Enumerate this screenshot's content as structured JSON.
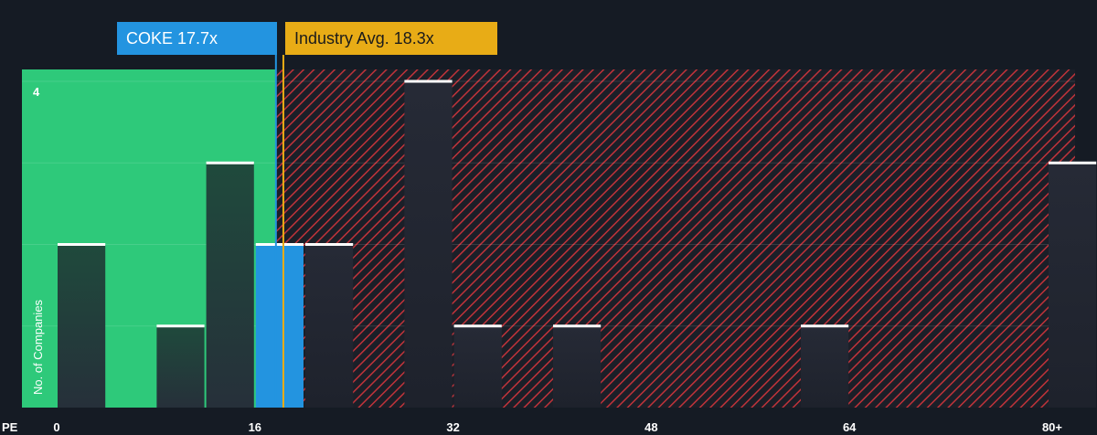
{
  "company_label": "COKE 17.7x",
  "industry_label": "Industry Avg. 18.3x",
  "colors": {
    "background": "#151b24",
    "undervalued_zone": "#2ec97a",
    "overvalued_hatch": "#c0333a",
    "company": "#2394e0",
    "industry": "#e8ac16",
    "bar_top": "#ffffff"
  },
  "chart_data": {
    "type": "bar",
    "xlabel": "PE",
    "ylabel": "No. of Companies",
    "x_ticks": [
      "0",
      "16",
      "32",
      "48",
      "64",
      "80+"
    ],
    "x_tick_values": [
      0,
      16,
      32,
      48,
      64,
      80
    ],
    "y_ticks": [
      "4"
    ],
    "ylim": [
      0,
      4
    ],
    "bars": [
      {
        "start": 0,
        "end": 4,
        "value": 2
      },
      {
        "start": 8,
        "end": 12,
        "value": 1
      },
      {
        "start": 12,
        "end": 16,
        "value": 3
      },
      {
        "start": 16,
        "end": 20,
        "value": 2,
        "highlight": "company"
      },
      {
        "start": 20,
        "end": 24,
        "value": 2
      },
      {
        "start": 28,
        "end": 32,
        "value": 4
      },
      {
        "start": 32,
        "end": 36,
        "value": 1
      },
      {
        "start": 40,
        "end": 44,
        "value": 1
      },
      {
        "start": 60,
        "end": 64,
        "value": 1
      },
      {
        "start": 80,
        "end": 84,
        "value": 3
      }
    ],
    "company_pe": 17.7,
    "industry_pe": 18.3,
    "grid": true
  }
}
